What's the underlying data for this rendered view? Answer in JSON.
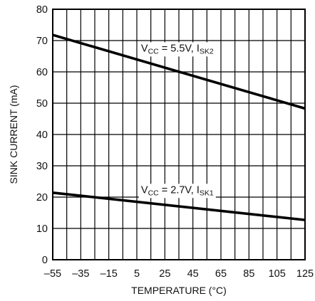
{
  "chart_data": {
    "type": "line",
    "title": "",
    "xlabel": "TEMPERATURE (°C)",
    "ylabel": "SINK CURRENT (mA)",
    "xlim": [
      -55,
      125
    ],
    "ylim": [
      0,
      80
    ],
    "x_ticks": [
      -55,
      -35,
      -15,
      5,
      25,
      45,
      65,
      85,
      105,
      125
    ],
    "x_tick_labels": [
      "–55",
      "–35",
      "–15",
      "5",
      "25",
      "45",
      "65",
      "85",
      "105",
      "125"
    ],
    "y_ticks": [
      0,
      10,
      20,
      30,
      40,
      50,
      60,
      70,
      80
    ],
    "y_tick_labels": [
      "0",
      "10",
      "20",
      "30",
      "40",
      "50",
      "60",
      "70",
      "80"
    ],
    "x_minor_grid_step": 10,
    "grid": true,
    "series": [
      {
        "label_main": "V",
        "label_sub1": "CC",
        "label_mid": " = 5.5V, I",
        "label_sub2": "SK2",
        "x": [
          -55,
          125
        ],
        "y": [
          71.8,
          48.3
        ],
        "label_at": {
          "x": 8,
          "y": 66.5
        }
      },
      {
        "label_main": "V",
        "label_sub1": "CC",
        "label_mid": " = 2.7V, I",
        "label_sub2": "SK1",
        "x": [
          -55,
          125
        ],
        "y": [
          21.4,
          12.7
        ],
        "label_at": {
          "x": 8,
          "y": 21.3
        }
      }
    ],
    "line_color": "#000000"
  }
}
